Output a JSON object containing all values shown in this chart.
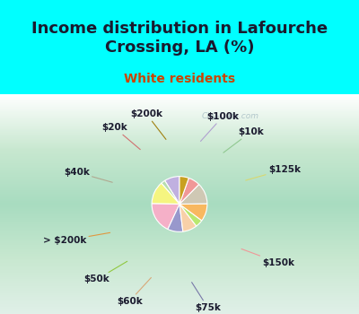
{
  "title": "Income distribution in Lafourche\nCrossing, LA (%)",
  "subtitle": "White residents",
  "bg_color": "#00FFFF",
  "watermark": "City-Data.com",
  "title_fontsize": 13,
  "subtitle_fontsize": 10,
  "label_fontsize": 7.5,
  "labels": [
    "$100k",
    "$10k",
    "$125k",
    "$150k",
    "$75k",
    "$60k",
    "$50k",
    "> $200k",
    "$40k",
    "$20k",
    "$200k"
  ],
  "sizes": [
    9.0,
    2.5,
    13.5,
    18.5,
    9.0,
    8.5,
    4.5,
    10.5,
    12.5,
    7.0,
    5.5
  ],
  "colors": [
    "#c0b0e0",
    "#b8ddb0",
    "#f5f580",
    "#f5b0c8",
    "#9898cc",
    "#f8d0a8",
    "#b8e870",
    "#f8b860",
    "#cfc8b4",
    "#f09898",
    "#c8a020"
  ],
  "line_colors": [
    "#b0a0d0",
    "#90c890",
    "#d8d870",
    "#f09898",
    "#7878a8",
    "#d8a878",
    "#90c840",
    "#e09840",
    "#b0a890",
    "#d07070",
    "#a08010"
  ]
}
